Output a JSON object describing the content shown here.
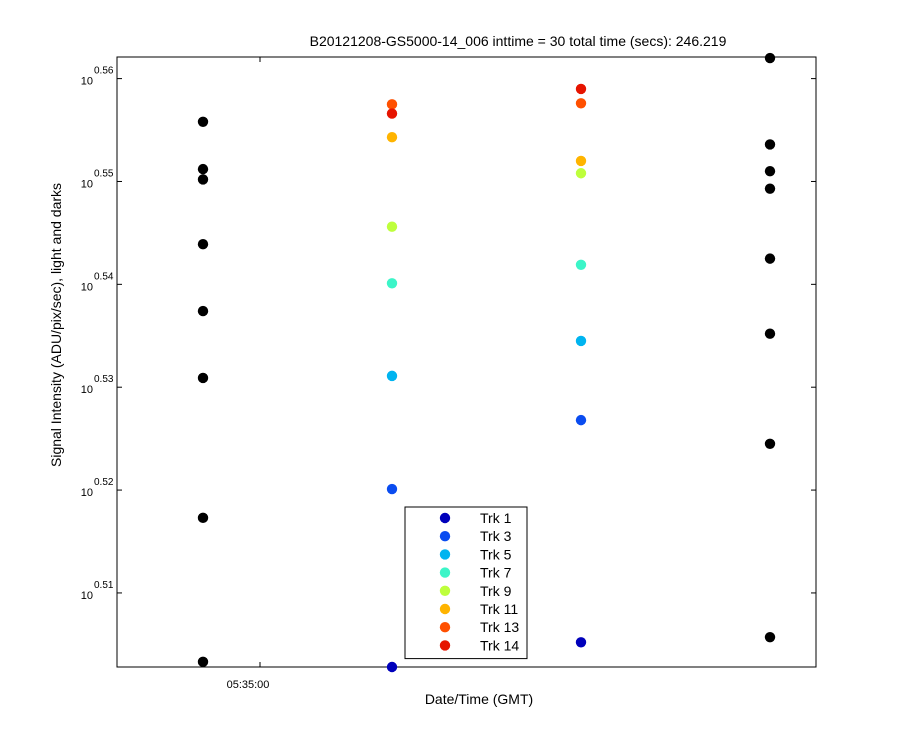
{
  "chart_data": {
    "type": "scatter",
    "title": "B20121208-GS5000-14_006 inttime = 30 total time (secs): 246.219",
    "xlabel": "Date/Time (GMT)",
    "ylabel": "Signal Intensity (ADU/pix/sec), light and darks",
    "x_tick_labels": [
      "05:35:00"
    ],
    "y_scale": "log",
    "y_tick_base": "10",
    "y_tick_exponents": [
      "0.51",
      "0.52",
      "0.53",
      "0.54",
      "0.55",
      "0.56"
    ],
    "ylim_exponent": [
      0.5028,
      0.5621
    ],
    "grid": false,
    "legend_position": "lower-center",
    "x_groups": [
      1,
      2,
      3,
      4
    ],
    "series": [
      {
        "name": "darks",
        "color": "#000000",
        "show_in_legend": false,
        "points": [
          {
            "x": 1,
            "y_exp": 0.5558
          },
          {
            "x": 1,
            "y_exp": 0.5512
          },
          {
            "x": 1,
            "y_exp": 0.5502
          },
          {
            "x": 1,
            "y_exp": 0.5439
          },
          {
            "x": 1,
            "y_exp": 0.5374
          },
          {
            "x": 1,
            "y_exp": 0.5309
          },
          {
            "x": 1,
            "y_exp": 0.5173
          },
          {
            "x": 1,
            "y_exp": 0.5033
          },
          {
            "x": 4,
            "y_exp": 0.562
          },
          {
            "x": 4,
            "y_exp": 0.5536
          },
          {
            "x": 4,
            "y_exp": 0.551
          },
          {
            "x": 4,
            "y_exp": 0.5493
          },
          {
            "x": 4,
            "y_exp": 0.5425
          },
          {
            "x": 4,
            "y_exp": 0.5352
          },
          {
            "x": 4,
            "y_exp": 0.5245
          },
          {
            "x": 4,
            "y_exp": 0.5057
          }
        ]
      },
      {
        "name": "Trk 1",
        "color": "#0000bb",
        "show_in_legend": true,
        "points": [
          {
            "x": 2,
            "y_exp": 0.5028
          },
          {
            "x": 3,
            "y_exp": 0.5052
          }
        ]
      },
      {
        "name": "Trk 3",
        "color": "#0a4cf0",
        "show_in_legend": true,
        "points": [
          {
            "x": 2,
            "y_exp": 0.5201
          },
          {
            "x": 3,
            "y_exp": 0.5268
          }
        ]
      },
      {
        "name": "Trk 5",
        "color": "#00b4f0",
        "show_in_legend": true,
        "points": [
          {
            "x": 2,
            "y_exp": 0.5311
          },
          {
            "x": 3,
            "y_exp": 0.5345
          }
        ]
      },
      {
        "name": "Trk 7",
        "color": "#3cf5c8",
        "show_in_legend": true,
        "points": [
          {
            "x": 2,
            "y_exp": 0.5401
          },
          {
            "x": 3,
            "y_exp": 0.5419
          }
        ]
      },
      {
        "name": "Trk 9",
        "color": "#beff3c",
        "show_in_legend": true,
        "points": [
          {
            "x": 2,
            "y_exp": 0.5456
          },
          {
            "x": 3,
            "y_exp": 0.5508
          }
        ]
      },
      {
        "name": "Trk 11",
        "color": "#ffb400",
        "show_in_legend": true,
        "points": [
          {
            "x": 2,
            "y_exp": 0.5543
          },
          {
            "x": 3,
            "y_exp": 0.552
          }
        ]
      },
      {
        "name": "Trk 13",
        "color": "#ff5000",
        "show_in_legend": true,
        "points": [
          {
            "x": 2,
            "y_exp": 0.5575
          },
          {
            "x": 3,
            "y_exp": 0.5576
          }
        ]
      },
      {
        "name": "Trk 14",
        "color": "#e61400",
        "show_in_legend": true,
        "points": [
          {
            "x": 2,
            "y_exp": 0.5566
          },
          {
            "x": 3,
            "y_exp": 0.559
          }
        ]
      }
    ]
  }
}
